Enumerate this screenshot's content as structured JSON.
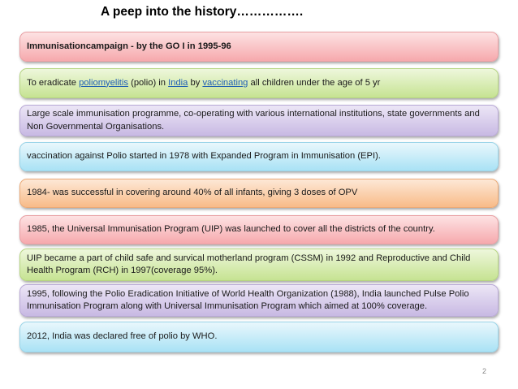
{
  "slide": {
    "title": "A peep into the history…………….",
    "page_number": "2"
  },
  "boxes": {
    "b0": {
      "text": "Immunisationcampaign -  by the GO I in 1995-96"
    },
    "b1": {
      "p1": "To  eradicate ",
      "link1": "poliomyelitis",
      "p2": " (polio) in ",
      "link2": "India",
      "p3": " by ",
      "link3": "vaccinating",
      "p4": " all children under the age of 5 yr"
    },
    "b2": {
      "text": "Large scale immunisation programme, co-operating with various international institutions, state governments and Non Governmental Organisations."
    },
    "b3": {
      "text": "vaccination against Polio started in 1978 with Expanded Program in Immunisation (EPI)."
    },
    "b4": {
      "text": "1984- was successful in covering around 40% of all infants, giving 3 doses of OPV"
    },
    "b5": {
      "text": "1985, the Universal Immunisation Program (UIP) was launched to cover all the districts of the country."
    },
    "b6": {
      "text": "UIP became a part of child safe and survical motherland program (CSSM) in 1992 and Reproductive and Child Health Program (RCH) in 1997(coverage 95%)."
    },
    "b7": {
      "text": "1995, following the Polio Eradication Initiative of World Health Organization (1988), India launched Pulse Polio Immunisation Program along with Universal Immunisation Program which aimed at 100% coverage."
    },
    "b8": {
      "text": "2012, India was declared free of polio by WHO."
    }
  },
  "colors": {
    "pink": "#f6a9ad",
    "green": "#c6e392",
    "lavender": "#c8b9e3",
    "blue": "#a9e2f5",
    "orange": "#f8bb88",
    "link": "#1f5fb4"
  }
}
